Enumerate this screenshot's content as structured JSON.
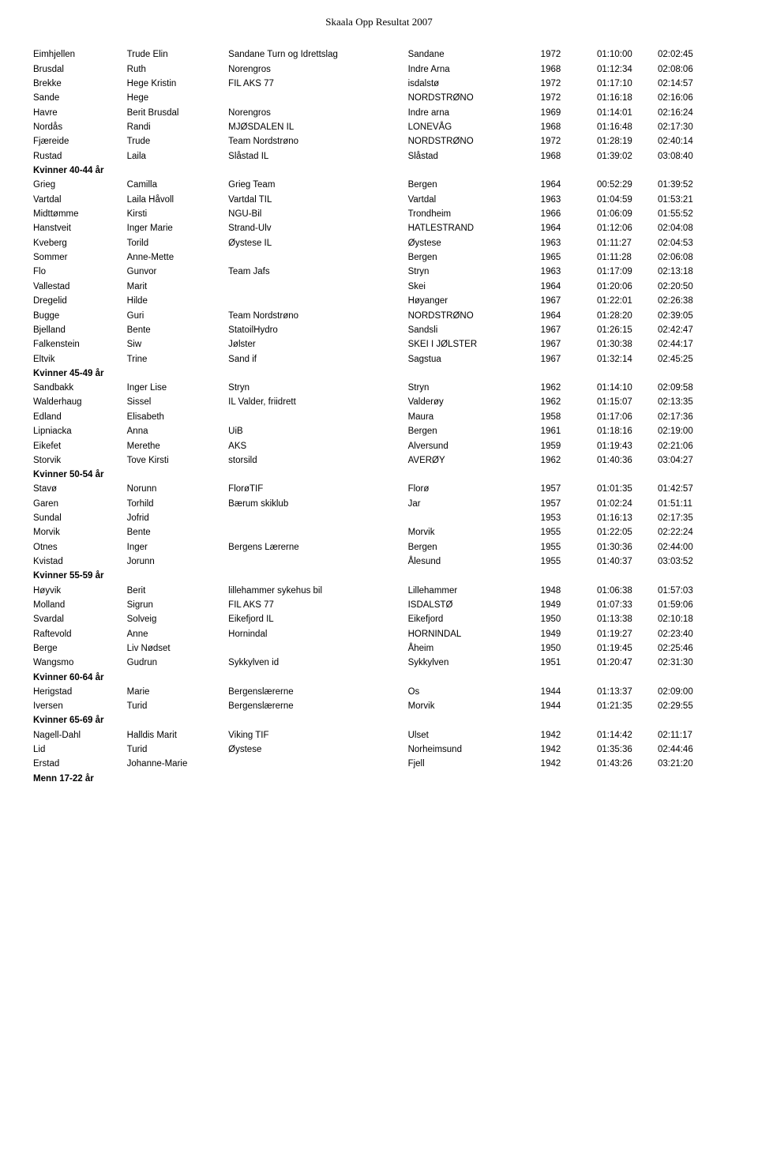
{
  "title": "Skaala Opp Resultat 2007",
  "table": {
    "font_size_pt": 11.5,
    "font_family": "Verdana",
    "text_color": "#000000",
    "background_color": "#ffffff",
    "section_font_weight": "bold",
    "columns": [
      {
        "key": "surname",
        "width_pct": 12
      },
      {
        "key": "first_name",
        "width_pct": 13
      },
      {
        "key": "club",
        "width_pct": 23
      },
      {
        "key": "place",
        "width_pct": 17
      },
      {
        "key": "year",
        "width_pct": 6
      },
      {
        "key": "time1",
        "width_pct": 9
      },
      {
        "key": "time2",
        "width_pct": 9
      }
    ]
  },
  "sections": [
    {
      "rows": [
        {
          "surname": "Eimhjellen",
          "first_name": "Trude Elin",
          "club": "Sandane Turn og Idrettslag",
          "place": "Sandane",
          "year": "1972",
          "time1": "01:10:00",
          "time2": "02:02:45"
        },
        {
          "surname": "Brusdal",
          "first_name": "Ruth",
          "club": "Norengros",
          "place": "Indre Arna",
          "year": "1968",
          "time1": "01:12:34",
          "time2": "02:08:06"
        },
        {
          "surname": "Brekke",
          "first_name": "Hege Kristin",
          "club": "FIL AKS 77",
          "place": "isdalstø",
          "year": "1972",
          "time1": "01:17:10",
          "time2": "02:14:57"
        },
        {
          "surname": "Sande",
          "first_name": "Hege",
          "club": "",
          "place": "NORDSTRØNO",
          "year": "1972",
          "time1": "01:16:18",
          "time2": "02:16:06"
        },
        {
          "surname": "Havre",
          "first_name": "Berit Brusdal",
          "club": "Norengros",
          "place": "Indre arna",
          "year": "1969",
          "time1": "01:14:01",
          "time2": "02:16:24"
        },
        {
          "surname": "Nordås",
          "first_name": "Randi",
          "club": "MJØSDALEN IL",
          "place": "LONEVÅG",
          "year": "1968",
          "time1": "01:16:48",
          "time2": "02:17:30"
        },
        {
          "surname": "Fjæreide",
          "first_name": "Trude",
          "club": "Team Nordstrøno",
          "place": "NORDSTRØNO",
          "year": "1972",
          "time1": "01:28:19",
          "time2": "02:40:14"
        },
        {
          "surname": "Rustad",
          "first_name": "Laila",
          "club": "Slåstad IL",
          "place": "Slåstad",
          "year": "1968",
          "time1": "01:39:02",
          "time2": "03:08:40"
        }
      ]
    },
    {
      "heading": "Kvinner 40-44 år",
      "rows": [
        {
          "surname": "Grieg",
          "first_name": "Camilla",
          "club": "Grieg Team",
          "place": "Bergen",
          "year": "1964",
          "time1": "00:52:29",
          "time2": "01:39:52"
        },
        {
          "surname": "Vartdal",
          "first_name": "Laila Håvoll",
          "club": "Vartdal TIL",
          "place": "Vartdal",
          "year": "1963",
          "time1": "01:04:59",
          "time2": "01:53:21"
        },
        {
          "surname": "Midttømme",
          "first_name": "Kirsti",
          "club": "NGU-Bil",
          "place": "Trondheim",
          "year": "1966",
          "time1": "01:06:09",
          "time2": "01:55:52"
        },
        {
          "surname": "Hanstveit",
          "first_name": "Inger Marie",
          "club": "Strand-Ulv",
          "place": "HATLESTRAND",
          "year": "1964",
          "time1": "01:12:06",
          "time2": "02:04:08"
        },
        {
          "surname": "Kveberg",
          "first_name": "Torild",
          "club": "Øystese IL",
          "place": "Øystese",
          "year": "1963",
          "time1": "01:11:27",
          "time2": "02:04:53"
        },
        {
          "surname": "Sommer",
          "first_name": "Anne-Mette",
          "club": "",
          "place": "Bergen",
          "year": "1965",
          "time1": "01:11:28",
          "time2": "02:06:08"
        },
        {
          "surname": "Flo",
          "first_name": "Gunvor",
          "club": "Team Jafs",
          "place": "Stryn",
          "year": "1963",
          "time1": "01:17:09",
          "time2": "02:13:18"
        },
        {
          "surname": "Vallestad",
          "first_name": "Marit",
          "club": "",
          "place": "Skei",
          "year": "1964",
          "time1": "01:20:06",
          "time2": "02:20:50"
        },
        {
          "surname": "Dregelid",
          "first_name": "Hilde",
          "club": "",
          "place": "Høyanger",
          "year": "1967",
          "time1": "01:22:01",
          "time2": "02:26:38"
        },
        {
          "surname": "Bugge",
          "first_name": "Guri",
          "club": "Team Nordstrøno",
          "place": "NORDSTRØNO",
          "year": "1964",
          "time1": "01:28:20",
          "time2": "02:39:05"
        },
        {
          "surname": "Bjelland",
          "first_name": "Bente",
          "club": "StatoilHydro",
          "place": "Sandsli",
          "year": "1967",
          "time1": "01:26:15",
          "time2": "02:42:47"
        },
        {
          "surname": "Falkenstein",
          "first_name": "Siw",
          "club": "Jølster",
          "place": "SKEI I JØLSTER",
          "year": "1967",
          "time1": "01:30:38",
          "time2": "02:44:17"
        },
        {
          "surname": "Eltvik",
          "first_name": "Trine",
          "club": "Sand if",
          "place": "Sagstua",
          "year": "1967",
          "time1": "01:32:14",
          "time2": "02:45:25"
        }
      ]
    },
    {
      "heading": "Kvinner 45-49 år",
      "rows": [
        {
          "surname": "Sandbakk",
          "first_name": "Inger Lise",
          "club": "Stryn",
          "place": "Stryn",
          "year": "1962",
          "time1": "01:14:10",
          "time2": "02:09:58"
        },
        {
          "surname": "Walderhaug",
          "first_name": "Sissel",
          "club": "IL Valder, friidrett",
          "place": "Valderøy",
          "year": "1962",
          "time1": "01:15:07",
          "time2": "02:13:35"
        },
        {
          "surname": "Edland",
          "first_name": "Elisabeth",
          "club": "",
          "place": "Maura",
          "year": "1958",
          "time1": "01:17:06",
          "time2": "02:17:36"
        },
        {
          "surname": "Lipniacka",
          "first_name": "Anna",
          "club": "UiB",
          "place": "Bergen",
          "year": "1961",
          "time1": "01:18:16",
          "time2": "02:19:00"
        },
        {
          "surname": "Eikefet",
          "first_name": "Merethe",
          "club": "AKS",
          "place": "Alversund",
          "year": "1959",
          "time1": "01:19:43",
          "time2": "02:21:06"
        },
        {
          "surname": "Storvik",
          "first_name": "Tove Kirsti",
          "club": "storsild",
          "place": "AVERØY",
          "year": "1962",
          "time1": "01:40:36",
          "time2": "03:04:27"
        }
      ]
    },
    {
      "heading": "Kvinner 50-54 år",
      "rows": [
        {
          "surname": "Stavø",
          "first_name": "Norunn",
          "club": "FlorøTIF",
          "place": "Florø",
          "year": "1957",
          "time1": "01:01:35",
          "time2": "01:42:57"
        },
        {
          "surname": "Garen",
          "first_name": "Torhild",
          "club": "Bærum skiklub",
          "place": "Jar",
          "year": "1957",
          "time1": "01:02:24",
          "time2": "01:51:11"
        },
        {
          "surname": "Sundal",
          "first_name": "Jofrid",
          "club": "",
          "place": "",
          "year": "1953",
          "time1": "01:16:13",
          "time2": "02:17:35"
        },
        {
          "surname": "Morvik",
          "first_name": "Bente",
          "club": "",
          "place": "Morvik",
          "year": "1955",
          "time1": "01:22:05",
          "time2": "02:22:24"
        },
        {
          "surname": "Otnes",
          "first_name": "Inger",
          "club": "Bergens Lærerne",
          "place": "Bergen",
          "year": "1955",
          "time1": "01:30:36",
          "time2": "02:44:00"
        },
        {
          "surname": "Kvistad",
          "first_name": "Jorunn",
          "club": "",
          "place": "Ålesund",
          "year": "1955",
          "time1": "01:40:37",
          "time2": "03:03:52"
        }
      ]
    },
    {
      "heading": "Kvinner 55-59 år",
      "rows": [
        {
          "surname": "Høyvik",
          "first_name": "Berit",
          "club": "lillehammer sykehus bil",
          "place": "Lillehammer",
          "year": "1948",
          "time1": "01:06:38",
          "time2": "01:57:03"
        },
        {
          "surname": "Molland",
          "first_name": "Sigrun",
          "club": "FIL AKS 77",
          "place": "ISDALSTØ",
          "year": "1949",
          "time1": "01:07:33",
          "time2": "01:59:06"
        },
        {
          "surname": "Svardal",
          "first_name": "Solveig",
          "club": "Eikefjord IL",
          "place": "Eikefjord",
          "year": "1950",
          "time1": "01:13:38",
          "time2": "02:10:18"
        },
        {
          "surname": "Raftevold",
          "first_name": "Anne",
          "club": "Hornindal",
          "place": "HORNINDAL",
          "year": "1949",
          "time1": "01:19:27",
          "time2": "02:23:40"
        },
        {
          "surname": "Berge",
          "first_name": "Liv Nødset",
          "club": "",
          "place": "Åheim",
          "year": "1950",
          "time1": "01:19:45",
          "time2": "02:25:46"
        },
        {
          "surname": "Wangsmo",
          "first_name": "Gudrun",
          "club": "Sykkylven id",
          "place": "Sykkylven",
          "year": "1951",
          "time1": "01:20:47",
          "time2": "02:31:30"
        }
      ]
    },
    {
      "heading": "Kvinner 60-64 år",
      "rows": [
        {
          "surname": "Herigstad",
          "first_name": "Marie",
          "club": "Bergenslærerne",
          "place": "Os",
          "year": "1944",
          "time1": "01:13:37",
          "time2": "02:09:00"
        },
        {
          "surname": "Iversen",
          "first_name": "Turid",
          "club": "Bergenslærerne",
          "place": "Morvik",
          "year": "1944",
          "time1": "01:21:35",
          "time2": "02:29:55"
        }
      ]
    },
    {
      "heading": "Kvinner 65-69 år",
      "rows": [
        {
          "surname": "Nagell-Dahl",
          "first_name": "Halldis Marit",
          "club": "Viking TIF",
          "place": "Ulset",
          "year": "1942",
          "time1": "01:14:42",
          "time2": "02:11:17"
        },
        {
          "surname": "Lid",
          "first_name": "Turid",
          "club": "Øystese",
          "place": "Norheimsund",
          "year": "1942",
          "time1": "01:35:36",
          "time2": "02:44:46"
        },
        {
          "surname": "Erstad",
          "first_name": "Johanne-Marie",
          "club": "",
          "place": "Fjell",
          "year": "1942",
          "time1": "01:43:26",
          "time2": "03:21:20"
        }
      ]
    },
    {
      "heading": "Menn 17-22 år",
      "rows": []
    }
  ]
}
